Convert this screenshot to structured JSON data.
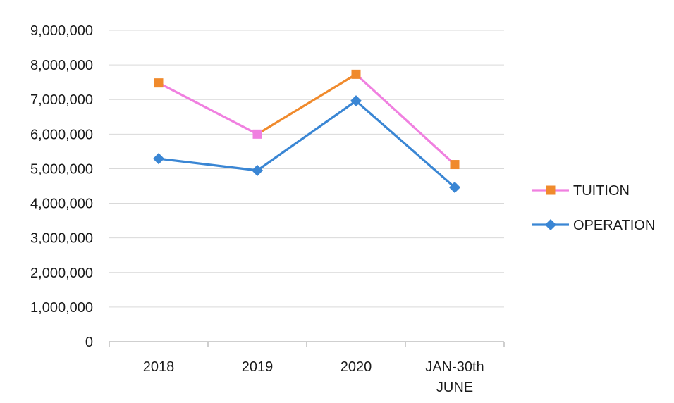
{
  "chart_data": {
    "type": "line",
    "title": "",
    "xlabel": "",
    "ylabel": "",
    "categories": [
      "2018",
      "2019",
      "2020",
      "JAN-30th JUNE"
    ],
    "category_lines": [
      [
        "2018"
      ],
      [
        "2019"
      ],
      [
        "2020"
      ],
      [
        "JAN-30th",
        "JUNE"
      ]
    ],
    "y_ticks": [
      "9,000,000",
      "8,000,000",
      "7,000,000",
      "6,000,000",
      "5,000,000",
      "4,000,000",
      "3,000,000",
      "2,000,000",
      "1,000,000",
      "0"
    ],
    "ylim": [
      0,
      9000000
    ],
    "grid": true,
    "legend_position": "right",
    "series": [
      {
        "name": "TUITION",
        "values": [
          7480000,
          6000000,
          7730000,
          5120000
        ],
        "marker": "square",
        "marker_colors": [
          "#f08a2c",
          "#f080e0",
          "#f08a2c",
          "#f08a2c"
        ],
        "segment_colors": [
          "#f080e0",
          "#f08a2c",
          "#f080e0"
        ],
        "legend_line_color": "#f080e0",
        "legend_marker_color": "#f08a2c"
      },
      {
        "name": "OPERATION",
        "values": [
          5290000,
          4950000,
          6960000,
          4460000
        ],
        "marker": "diamond",
        "marker_colors": [
          "#3a86d4",
          "#3a86d4",
          "#3a86d4",
          "#3a86d4"
        ],
        "segment_colors": [
          "#3a86d4",
          "#3a86d4",
          "#3a86d4"
        ],
        "legend_line_color": "#3a86d4",
        "legend_marker_color": "#3a86d4"
      }
    ]
  }
}
